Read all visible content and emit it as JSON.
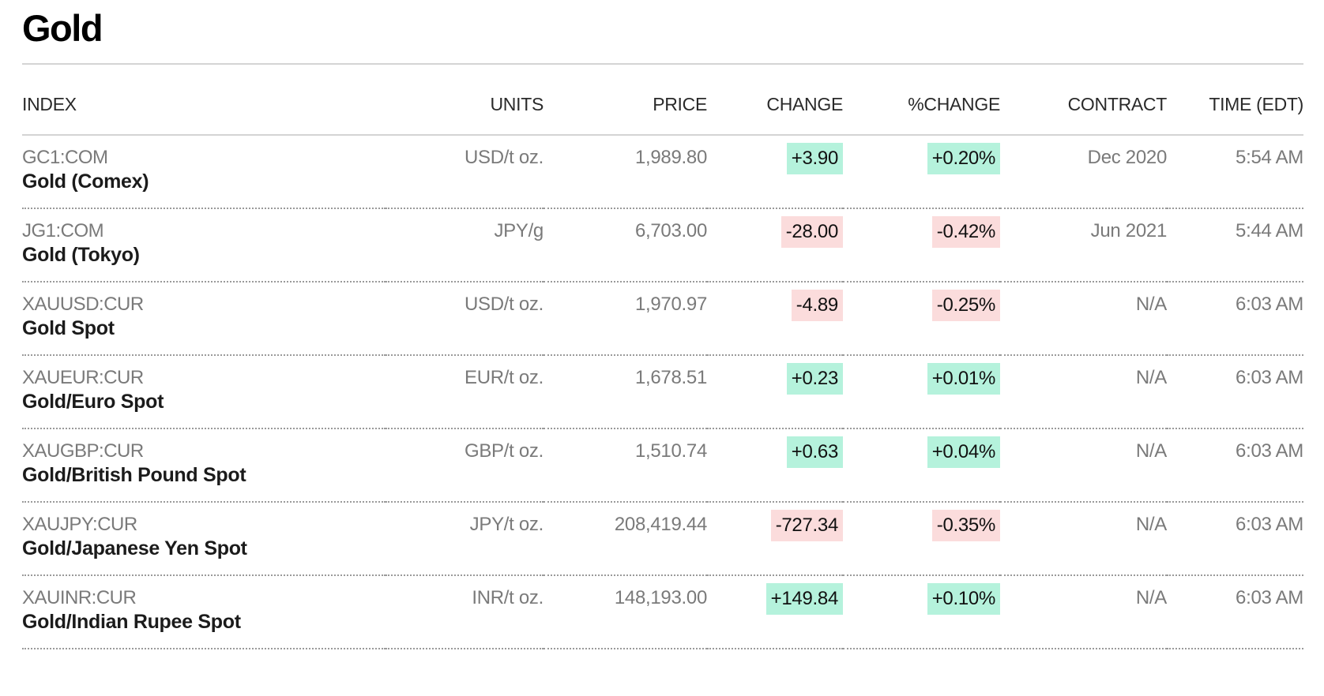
{
  "page": {
    "title": "Gold"
  },
  "table": {
    "headers": {
      "index": "INDEX",
      "units": "UNITS",
      "price": "PRICE",
      "change": "CHANGE",
      "pct_change": "%CHANGE",
      "contract": "CONTRACT",
      "time": "TIME (EDT)"
    },
    "rows": [
      {
        "ticker": "GC1:COM",
        "name": "Gold (Comex)",
        "units": "USD/t oz.",
        "price": "1,989.80",
        "change": "+3.90",
        "pct_change": "+0.20%",
        "direction": "up",
        "contract": "Dec 2020",
        "time": "5:54 AM"
      },
      {
        "ticker": "JG1:COM",
        "name": "Gold (Tokyo)",
        "units": "JPY/g",
        "price": "6,703.00",
        "change": "-28.00",
        "pct_change": "-0.42%",
        "direction": "down",
        "contract": "Jun 2021",
        "time": "5:44 AM"
      },
      {
        "ticker": "XAUUSD:CUR",
        "name": "Gold Spot",
        "units": "USD/t oz.",
        "price": "1,970.97",
        "change": "-4.89",
        "pct_change": "-0.25%",
        "direction": "down",
        "contract": "N/A",
        "time": "6:03 AM"
      },
      {
        "ticker": "XAUEUR:CUR",
        "name": "Gold/Euro Spot",
        "units": "EUR/t oz.",
        "price": "1,678.51",
        "change": "+0.23",
        "pct_change": "+0.01%",
        "direction": "up",
        "contract": "N/A",
        "time": "6:03 AM"
      },
      {
        "ticker": "XAUGBP:CUR",
        "name": "Gold/British Pound Spot",
        "units": "GBP/t oz.",
        "price": "1,510.74",
        "change": "+0.63",
        "pct_change": "+0.04%",
        "direction": "up",
        "contract": "N/A",
        "time": "6:03 AM"
      },
      {
        "ticker": "XAUJPY:CUR",
        "name": "Gold/Japanese Yen Spot",
        "units": "JPY/t oz.",
        "price": "208,419.44",
        "change": "-727.34",
        "pct_change": "-0.35%",
        "direction": "down",
        "contract": "N/A",
        "time": "6:03 AM"
      },
      {
        "ticker": "XAUINR:CUR",
        "name": "Gold/Indian Rupee Spot",
        "units": "INR/t oz.",
        "price": "148,193.00",
        "change": "+149.84",
        "pct_change": "+0.10%",
        "direction": "up",
        "contract": "N/A",
        "time": "6:03 AM"
      }
    ]
  },
  "colors": {
    "positive_bg": "#b5f2dc",
    "negative_bg": "#fbdcdc",
    "muted_text": "#7a7a7a",
    "name_text": "#1b1b1b"
  }
}
